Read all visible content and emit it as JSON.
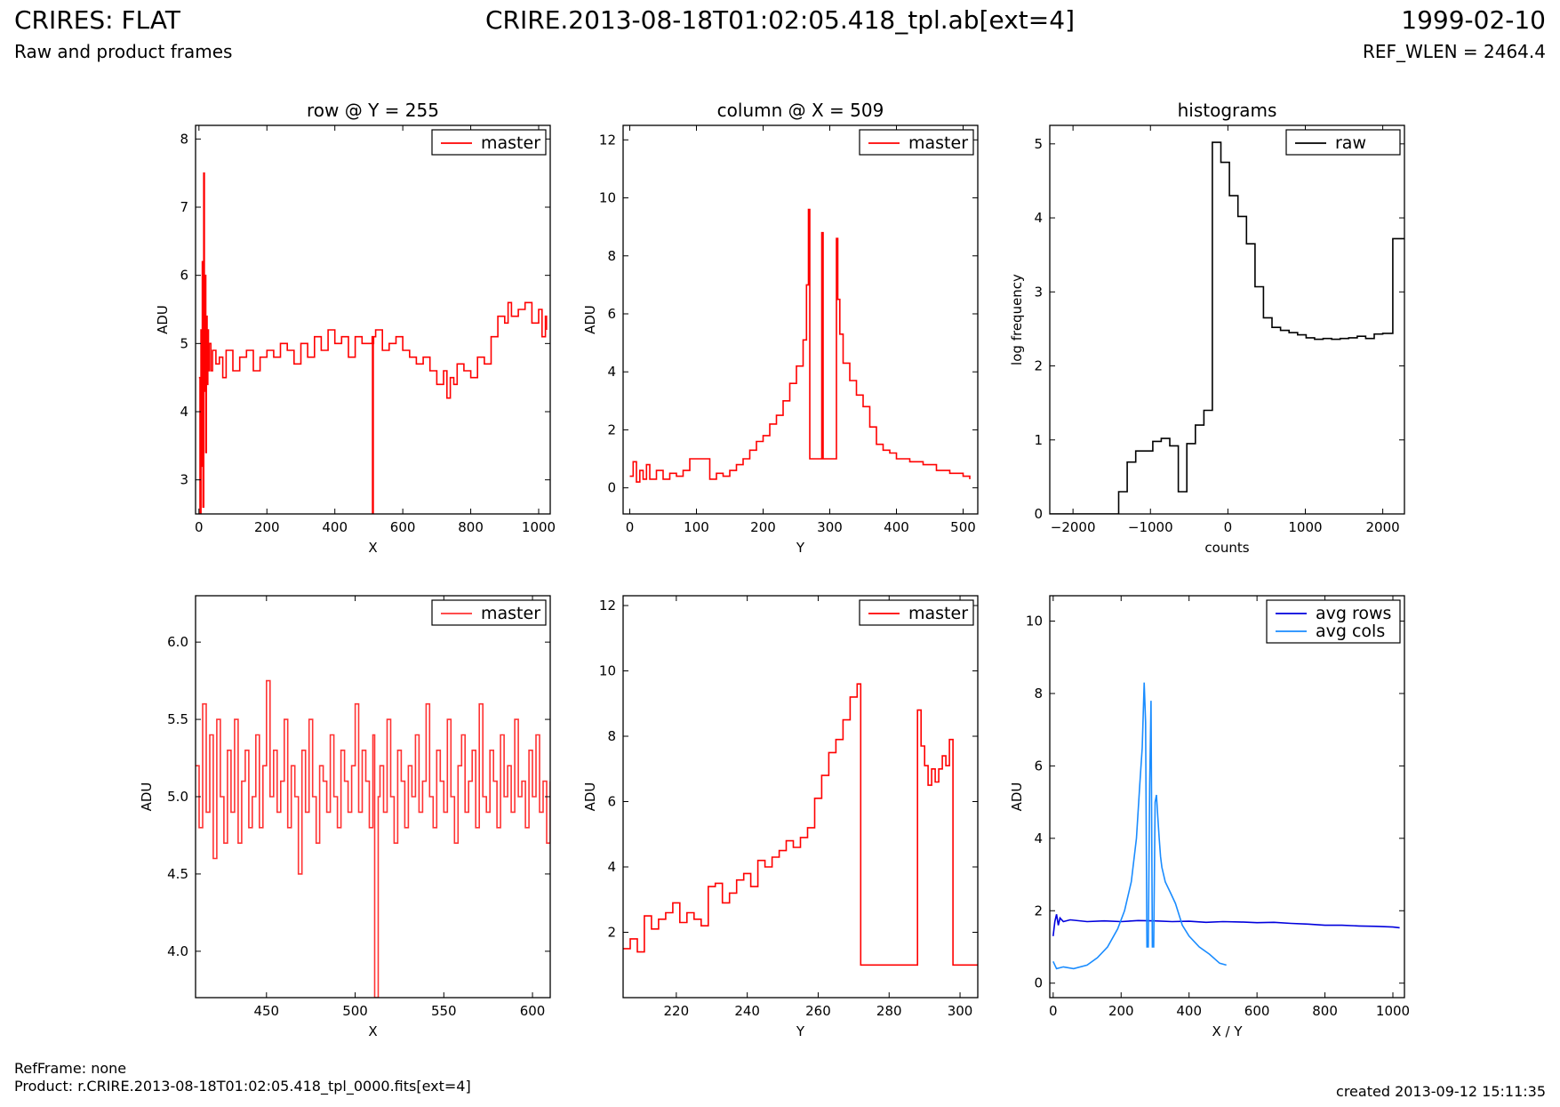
{
  "header": {
    "title_left": "CRIRES: FLAT",
    "subtitle_left": "Raw and product frames",
    "title_center": "CRIRE.2013-08-18T01:02:05.418_tpl.ab[ext=4]",
    "title_right": "1999-02-10",
    "subtitle_right": "REF_WLEN = 2464.4"
  },
  "footer": {
    "refframe": "RefFrame: none",
    "product": "Product: r.CRIRE.2013-08-18T01:02:05.418_tpl_0000.fits[ext=4]",
    "created": "created 2013-09-12 15:11:35"
  },
  "colors": {
    "red": "#ff0000",
    "red_light": "#ff3333",
    "black": "#000000",
    "dark_blue": "#0000dd",
    "light_blue": "#1a8cff"
  },
  "chart_data": [
    {
      "id": "row_full",
      "type": "line",
      "title": "row @ Y = 255",
      "xlabel": "X",
      "ylabel": "ADU",
      "xlim": [
        -10,
        1034
      ],
      "ylim": [
        2.5,
        8.2
      ],
      "xticks": [
        0,
        200,
        400,
        600,
        800,
        1000
      ],
      "yticks": [
        3,
        4,
        5,
        6,
        7,
        8
      ],
      "legend": {
        "position": "top-right",
        "entries": [
          {
            "label": "master",
            "color": "#ff0000"
          }
        ]
      },
      "series": [
        {
          "name": "master",
          "color": "#ff0000",
          "step": true,
          "x": [
            0,
            3,
            6,
            8,
            10,
            12,
            14,
            16,
            18,
            20,
            22,
            24,
            26,
            28,
            30,
            35,
            40,
            50,
            60,
            70,
            80,
            100,
            120,
            140,
            160,
            180,
            200,
            220,
            240,
            260,
            280,
            300,
            320,
            340,
            360,
            380,
            400,
            420,
            440,
            460,
            480,
            500,
            510,
            511,
            512,
            513,
            514,
            520,
            540,
            560,
            580,
            600,
            620,
            640,
            660,
            680,
            700,
            720,
            730,
            740,
            750,
            760,
            780,
            800,
            820,
            840,
            860,
            880,
            900,
            910,
            920,
            940,
            960,
            980,
            1000,
            1010,
            1020,
            1023
          ],
          "y": [
            4.5,
            2.5,
            5.2,
            3.2,
            6.2,
            2.6,
            7.5,
            4.3,
            6.0,
            3.4,
            5.4,
            4.4,
            5.2,
            4.6,
            5.0,
            4.6,
            4.9,
            4.7,
            4.8,
            4.5,
            4.9,
            4.6,
            4.8,
            4.9,
            4.6,
            4.8,
            4.9,
            4.8,
            5.0,
            4.9,
            4.7,
            5.0,
            4.8,
            5.1,
            4.9,
            5.2,
            5.0,
            5.1,
            4.8,
            5.1,
            5.0,
            5.0,
            5.1,
            2.5,
            2.5,
            5.0,
            5.1,
            5.2,
            4.9,
            5.0,
            5.1,
            4.9,
            4.8,
            4.7,
            4.8,
            4.6,
            4.4,
            4.6,
            4.2,
            4.5,
            4.4,
            4.7,
            4.6,
            4.5,
            4.8,
            4.7,
            5.1,
            5.4,
            5.3,
            5.6,
            5.4,
            5.5,
            5.6,
            5.3,
            5.5,
            5.1,
            5.4,
            5.2
          ]
        }
      ]
    },
    {
      "id": "col_full",
      "type": "line",
      "title": "column @ X = 509",
      "xlabel": "Y",
      "ylabel": "ADU",
      "xlim": [
        -10,
        522
      ],
      "ylim": [
        -0.9,
        12.5
      ],
      "xticks": [
        0,
        100,
        200,
        300,
        400,
        500
      ],
      "yticks": [
        0,
        2,
        4,
        6,
        8,
        10,
        12
      ],
      "legend": {
        "position": "top-right",
        "entries": [
          {
            "label": "master",
            "color": "#ff0000"
          }
        ]
      },
      "series": [
        {
          "name": "master",
          "color": "#ff0000",
          "step": true,
          "x": [
            0,
            5,
            10,
            15,
            20,
            25,
            30,
            40,
            50,
            60,
            70,
            80,
            90,
            100,
            110,
            120,
            130,
            140,
            150,
            160,
            170,
            180,
            190,
            200,
            210,
            220,
            230,
            240,
            250,
            260,
            265,
            268,
            270,
            272,
            280,
            285,
            288,
            290,
            292,
            300,
            305,
            310,
            312,
            315,
            320,
            330,
            340,
            350,
            360,
            370,
            380,
            390,
            400,
            420,
            440,
            460,
            480,
            500,
            510
          ],
          "y": [
            0.4,
            0.9,
            0.2,
            0.6,
            0.3,
            0.8,
            0.3,
            0.6,
            0.3,
            0.5,
            0.4,
            0.6,
            1.0,
            1.0,
            1.0,
            0.3,
            0.5,
            0.4,
            0.6,
            0.8,
            1.0,
            1.3,
            1.6,
            1.8,
            2.2,
            2.5,
            3.0,
            3.6,
            4.2,
            5.1,
            7.0,
            9.6,
            1.0,
            1.0,
            1.0,
            1.0,
            8.8,
            1.0,
            1.0,
            1.0,
            1.0,
            8.6,
            6.5,
            5.3,
            4.3,
            3.7,
            3.2,
            2.8,
            2.1,
            1.5,
            1.3,
            1.2,
            1.0,
            0.9,
            0.8,
            0.6,
            0.5,
            0.4,
            0.3
          ]
        }
      ]
    },
    {
      "id": "hist",
      "type": "line",
      "title": "histograms",
      "xlabel": "counts",
      "ylabel": "log frequency",
      "xlim": [
        -2300,
        2280
      ],
      "ylim": [
        0,
        5.25
      ],
      "xticks": [
        -2000,
        -1000,
        0,
        1000,
        2000
      ],
      "xtick_labels": [
        "−2000",
        "−1000",
        "0",
        "1000",
        "2000"
      ],
      "yticks": [
        0,
        1,
        2,
        3,
        4,
        5
      ],
      "legend": {
        "position": "top-right",
        "entries": [
          {
            "label": "raw",
            "color": "#000000"
          }
        ]
      },
      "series": [
        {
          "name": "raw",
          "color": "#000000",
          "step": true,
          "x": [
            -2300,
            -1520,
            -1410,
            -1300,
            -1190,
            -1080,
            -970,
            -860,
            -750,
            -640,
            -530,
            -420,
            -310,
            -200,
            -90,
            20,
            130,
            240,
            350,
            460,
            570,
            680,
            790,
            900,
            1010,
            1120,
            1230,
            1340,
            1450,
            1560,
            1670,
            1780,
            1890,
            2000,
            2130,
            2280
          ],
          "y": [
            0,
            0,
            0.3,
            0.7,
            0.85,
            0.85,
            0.98,
            1.02,
            0.92,
            0.3,
            0.95,
            1.2,
            1.4,
            5.02,
            4.75,
            4.3,
            4.02,
            3.65,
            3.07,
            2.65,
            2.52,
            2.48,
            2.45,
            2.42,
            2.38,
            2.36,
            2.37,
            2.36,
            2.37,
            2.38,
            2.4,
            2.37,
            2.43,
            2.44,
            3.72,
            3.72
          ]
        }
      ]
    },
    {
      "id": "row_zoom",
      "type": "line",
      "title": "",
      "xlabel": "X",
      "ylabel": "ADU",
      "xlim": [
        410,
        610
      ],
      "ylim": [
        3.7,
        6.3
      ],
      "xticks": [
        450,
        500,
        550,
        600
      ],
      "yticks": [
        4.0,
        4.5,
        5.0,
        5.5,
        6.0
      ],
      "ytick_labels": [
        "4.0",
        "4.5",
        "5.0",
        "5.5",
        "6.0"
      ],
      "legend": {
        "position": "top-right",
        "entries": [
          {
            "label": "master",
            "color": "#ff3333"
          }
        ]
      },
      "series": [
        {
          "name": "master",
          "color": "#ff3333",
          "step": true,
          "x": [
            410,
            412,
            414,
            416,
            418,
            420,
            422,
            424,
            426,
            428,
            430,
            432,
            434,
            436,
            438,
            440,
            442,
            444,
            446,
            448,
            450,
            452,
            454,
            456,
            458,
            460,
            462,
            464,
            466,
            468,
            470,
            472,
            474,
            476,
            478,
            480,
            482,
            484,
            486,
            488,
            490,
            492,
            494,
            496,
            498,
            500,
            502,
            504,
            506,
            508,
            510,
            511,
            512,
            513,
            514,
            516,
            518,
            520,
            522,
            524,
            526,
            528,
            530,
            532,
            534,
            536,
            538,
            540,
            542,
            544,
            546,
            548,
            550,
            552,
            554,
            556,
            558,
            560,
            562,
            564,
            566,
            568,
            570,
            572,
            574,
            576,
            578,
            580,
            582,
            584,
            586,
            588,
            590,
            592,
            594,
            596,
            598,
            600,
            602,
            604,
            606,
            608,
            610
          ],
          "y": [
            5.2,
            4.8,
            5.6,
            4.9,
            5.4,
            4.6,
            5.5,
            5.0,
            4.7,
            5.3,
            4.9,
            5.5,
            4.7,
            5.1,
            5.3,
            4.8,
            5.0,
            5.4,
            4.8,
            5.2,
            5.75,
            5.0,
            5.3,
            4.9,
            5.1,
            5.5,
            4.8,
            5.2,
            5.0,
            4.5,
            5.3,
            4.9,
            5.5,
            5.0,
            4.7,
            5.2,
            5.1,
            4.9,
            5.4,
            5.0,
            4.8,
            5.3,
            5.1,
            4.9,
            5.2,
            5.6,
            4.9,
            5.3,
            5.1,
            4.8,
            5.4,
            3.7,
            3.7,
            5.0,
            5.2,
            4.9,
            5.5,
            5.0,
            4.7,
            5.3,
            5.1,
            4.8,
            5.2,
            5.0,
            5.4,
            4.9,
            5.1,
            5.6,
            5.0,
            4.8,
            5.3,
            5.1,
            4.9,
            5.5,
            5.0,
            4.7,
            5.2,
            5.4,
            4.9,
            5.1,
            5.3,
            4.8,
            5.6,
            5.0,
            4.9,
            5.3,
            5.1,
            4.8,
            5.4,
            5.0,
            5.2,
            4.9,
            5.5,
            5.0,
            5.1,
            4.8,
            5.3,
            5.0,
            5.4,
            4.9,
            5.1,
            4.7,
            5.1
          ]
        }
      ]
    },
    {
      "id": "col_zoom",
      "type": "line",
      "title": "",
      "xlabel": "Y",
      "ylabel": "ADU",
      "xlim": [
        205,
        305
      ],
      "ylim": [
        0,
        12.3
      ],
      "xticks": [
        220,
        240,
        260,
        280,
        300
      ],
      "yticks": [
        2,
        4,
        6,
        8,
        10,
        12
      ],
      "legend": {
        "position": "top-right",
        "entries": [
          {
            "label": "master",
            "color": "#ff0000"
          }
        ]
      },
      "series": [
        {
          "name": "master",
          "color": "#ff0000",
          "step": true,
          "x": [
            205,
            207,
            209,
            211,
            213,
            215,
            217,
            219,
            221,
            223,
            225,
            227,
            229,
            231,
            233,
            235,
            237,
            239,
            241,
            243,
            245,
            247,
            249,
            251,
            253,
            255,
            257,
            259,
            261,
            263,
            265,
            267,
            269,
            271,
            272,
            274,
            276,
            278,
            280,
            282,
            284,
            286,
            288,
            289,
            290,
            291,
            292,
            293,
            294,
            295,
            296,
            297,
            298,
            300,
            302,
            305
          ],
          "y": [
            1.5,
            1.8,
            1.4,
            2.5,
            2.1,
            2.4,
            2.6,
            2.9,
            2.3,
            2.6,
            2.4,
            2.2,
            3.4,
            3.5,
            2.9,
            3.2,
            3.6,
            3.8,
            3.4,
            4.2,
            4.0,
            4.3,
            4.5,
            4.8,
            4.6,
            4.9,
            5.2,
            6.1,
            6.8,
            7.5,
            7.9,
            8.5,
            9.2,
            9.6,
            1.0,
            1.0,
            1.0,
            1.0,
            1.0,
            1.0,
            1.0,
            1.0,
            8.8,
            7.7,
            7.1,
            6.5,
            7.0,
            6.6,
            7.0,
            7.4,
            7.1,
            7.9,
            1.0,
            1.0,
            1.0,
            1.0
          ]
        }
      ]
    },
    {
      "id": "avg",
      "type": "line",
      "title": "",
      "xlabel": "X / Y",
      "ylabel": "ADU",
      "xlim": [
        -10,
        1034
      ],
      "ylim": [
        -0.4,
        10.7
      ],
      "xticks": [
        0,
        200,
        400,
        600,
        800,
        1000
      ],
      "yticks": [
        0,
        2,
        4,
        6,
        8,
        10
      ],
      "legend": {
        "position": "top-right",
        "entries": [
          {
            "label": "avg rows",
            "color": "#0000dd"
          },
          {
            "label": "avg cols",
            "color": "#1a8cff"
          }
        ]
      },
      "series": [
        {
          "name": "avg rows",
          "color": "#0000dd",
          "step": false,
          "x": [
            0,
            5,
            10,
            15,
            20,
            30,
            50,
            100,
            150,
            200,
            250,
            300,
            350,
            400,
            450,
            500,
            550,
            600,
            650,
            700,
            750,
            800,
            850,
            900,
            950,
            1000,
            1020
          ],
          "y": [
            1.3,
            1.7,
            1.9,
            1.6,
            1.8,
            1.7,
            1.75,
            1.7,
            1.72,
            1.7,
            1.73,
            1.72,
            1.7,
            1.71,
            1.68,
            1.7,
            1.69,
            1.67,
            1.68,
            1.65,
            1.63,
            1.6,
            1.6,
            1.58,
            1.57,
            1.55,
            1.53
          ]
        },
        {
          "name": "avg cols",
          "color": "#1a8cff",
          "step": false,
          "x": [
            0,
            5,
            10,
            30,
            60,
            100,
            130,
            160,
            190,
            210,
            230,
            245,
            255,
            262,
            268,
            272,
            276,
            280,
            284,
            288,
            292,
            296,
            300,
            304,
            308,
            312,
            316,
            320,
            330,
            345,
            360,
            380,
            400,
            430,
            460,
            490,
            510
          ],
          "y": [
            0.6,
            0.5,
            0.4,
            0.45,
            0.4,
            0.5,
            0.7,
            1.0,
            1.5,
            2.0,
            2.8,
            4.0,
            5.5,
            6.5,
            8.3,
            7.2,
            1.0,
            1.0,
            5.5,
            7.8,
            1.0,
            1.0,
            5.0,
            5.2,
            4.6,
            4.0,
            3.5,
            3.2,
            2.8,
            2.5,
            2.2,
            1.6,
            1.3,
            1.0,
            0.8,
            0.55,
            0.5
          ]
        }
      ]
    }
  ]
}
